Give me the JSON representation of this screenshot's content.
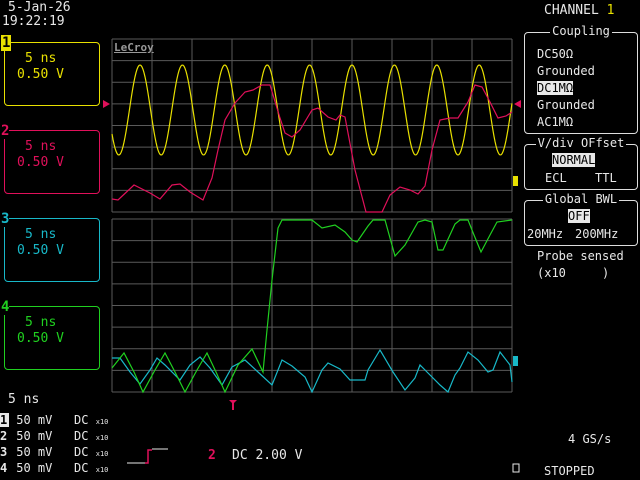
{
  "header": {
    "date": "5-Jan-26",
    "time": "19:22:19"
  },
  "logo": "LeCroy",
  "channels": [
    {
      "num": "1",
      "timebase": "5 ns",
      "volts": "0.50 V",
      "color": "#e8e000"
    },
    {
      "num": "2",
      "timebase": "5 ns",
      "volts": "0.50 V",
      "color": "#e0105a"
    },
    {
      "num": "3",
      "timebase": "5 ns",
      "volts": "0.50 V",
      "color": "#18b8c8"
    },
    {
      "num": "4",
      "timebase": "5 ns",
      "volts": "0.50 V",
      "color": "#20d020"
    }
  ],
  "menu": {
    "title": "CHANNEL",
    "title_num": "1",
    "coupling": {
      "label": "Coupling",
      "options": [
        "DC50Ω",
        "Grounded",
        "DC1MΩ",
        "Grounded",
        "AC1MΩ"
      ],
      "selected": "DC1MΩ"
    },
    "vdiv": {
      "label": "V/div OFfset",
      "options": [
        "NORMAL",
        "ECL",
        "TTL"
      ],
      "selected": "NORMAL"
    },
    "bwl": {
      "label": "Global BWL",
      "options": [
        "OFF",
        "20MHz",
        "200MHz"
      ],
      "selected": "OFF"
    },
    "probe_label": "Probe sensed",
    "probe_value": "(x10     )"
  },
  "footer": {
    "timebase": "5 ns",
    "traces": [
      {
        "num": "1",
        "volts": "50 mV",
        "coupling": "DC",
        "probe": "x10"
      },
      {
        "num": "2",
        "volts": "50 mV",
        "coupling": "DC",
        "probe": "x10"
      },
      {
        "num": "3",
        "volts": "50 mV",
        "coupling": "DC",
        "probe": "x10"
      },
      {
        "num": "4",
        "volts": "50 mV",
        "coupling": "DC",
        "probe": "x10"
      }
    ],
    "trigger_source": "2",
    "trigger_level": "DC 2.00 V",
    "sample_rate": "4 GS/s",
    "status": "STOPPED"
  }
}
